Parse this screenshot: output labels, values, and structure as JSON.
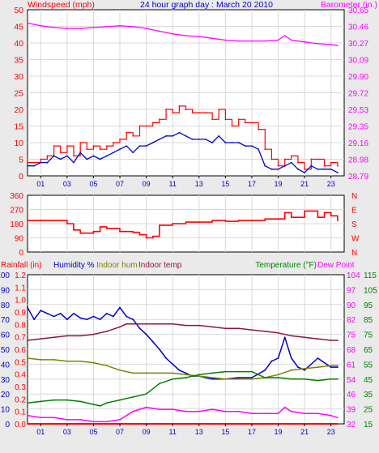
{
  "header": {
    "left_label": "Windspeed (mph)",
    "title": "24 hour graph day : March 20 2010",
    "right_label": "Barometer (in.)"
  },
  "panel3_header": {
    "rainfall": "Rainfall (in)",
    "humidity": "Humidity %",
    "indoor_hum": "Indoor hum",
    "indoor_temp": "Indoor temp",
    "temperature": "Temperature (°F)",
    "dew_point": "Dew Point"
  },
  "colors": {
    "bg": "#eaeaea",
    "plot_bg": "#ffffff",
    "wind": "#ff0000",
    "wind_avg": "#0000cc",
    "barometer": "#ff00ff",
    "humidity": "#0000cc",
    "indoor_hum": "#808000",
    "indoor_temp": "#8b1a3a",
    "temperature": "#008000",
    "dew_point": "#ff00ff",
    "rainfall": "#ff0000"
  },
  "chart_data": [
    {
      "type": "line",
      "title": "24 hour graph day : March 20 2010",
      "xlabel": "",
      "x_ticks": [
        "01",
        "03",
        "05",
        "07",
        "09",
        "11",
        "13",
        "15",
        "17",
        "19",
        "21",
        "23"
      ],
      "xlim": [
        0,
        24
      ],
      "left_axis": {
        "label": "Windspeed (mph)",
        "ticks": [
          0,
          5,
          10,
          15,
          20,
          25,
          30,
          35,
          40,
          45,
          50
        ],
        "ylim": [
          0,
          50
        ]
      },
      "right_axis": {
        "label": "Barometer (in.)",
        "ticks": [
          "28.79",
          "28.98",
          "29.16",
          "29.35",
          "29.53",
          "29.72",
          "29.90",
          "30.09",
          "30.27",
          "30.46",
          "30.65"
        ],
        "ylim": [
          28.79,
          30.65
        ]
      },
      "series": [
        {
          "name": "Windspeed",
          "axis": "left",
          "x": [
            0,
            0.5,
            1,
            1.5,
            2,
            2.5,
            3,
            3.5,
            4,
            4.5,
            5,
            5.5,
            6,
            6.5,
            7,
            7.5,
            8,
            8.5,
            9,
            9.5,
            10,
            10.5,
            11,
            11.5,
            12,
            12.5,
            13,
            13.5,
            14,
            14.5,
            15,
            15.5,
            16,
            16.5,
            17,
            17.5,
            18,
            18.5,
            19,
            19.5,
            20,
            20.5,
            21,
            21.5,
            22,
            22.5,
            23,
            23.5
          ],
          "values": [
            4,
            4,
            5,
            6,
            9,
            7,
            9,
            6,
            10,
            8,
            9,
            8,
            9,
            10,
            11,
            13,
            12,
            15,
            15,
            16,
            17,
            20,
            19,
            21,
            20,
            19,
            19,
            19,
            17,
            20,
            17,
            15,
            17,
            16,
            16,
            14,
            8,
            5,
            3,
            5,
            6,
            4,
            2,
            5,
            5,
            3,
            4,
            3
          ]
        },
        {
          "name": "Wind average",
          "axis": "left",
          "x": [
            0,
            0.5,
            1,
            1.5,
            2,
            2.5,
            3,
            3.5,
            4,
            4.5,
            5,
            5.5,
            6,
            6.5,
            7,
            7.5,
            8,
            8.5,
            9,
            9.5,
            10,
            10.5,
            11,
            11.5,
            12,
            12.5,
            13,
            13.5,
            14,
            14.5,
            15,
            15.5,
            16,
            16.5,
            17,
            17.5,
            18,
            18.5,
            19,
            19.5,
            20,
            20.5,
            21,
            21.5,
            22,
            22.5,
            23,
            23.5
          ],
          "values": [
            3,
            3,
            4,
            4,
            6,
            5,
            6,
            4,
            7,
            5,
            6,
            5,
            6,
            7,
            8,
            9,
            7,
            9,
            9,
            10,
            11,
            12,
            12,
            13,
            12,
            11,
            11,
            11,
            10,
            12,
            10,
            10,
            10,
            9,
            9,
            8,
            3,
            2,
            2,
            3,
            4,
            2,
            1,
            3,
            2,
            2,
            2,
            1
          ]
        },
        {
          "name": "Barometer",
          "axis": "right",
          "x": [
            0,
            1,
            2,
            3,
            4,
            5,
            6,
            7,
            8,
            9,
            10,
            11,
            12,
            13,
            14,
            15,
            16,
            17,
            18,
            19,
            19.5,
            20,
            21,
            22,
            23,
            23.5
          ],
          "values": [
            30.5,
            30.47,
            30.45,
            30.44,
            30.44,
            30.45,
            30.46,
            30.47,
            30.46,
            30.44,
            30.41,
            30.38,
            30.36,
            30.35,
            30.33,
            30.31,
            30.3,
            30.3,
            30.3,
            30.31,
            30.36,
            30.31,
            30.29,
            30.27,
            30.26,
            30.25
          ]
        }
      ]
    },
    {
      "type": "line",
      "title": "",
      "x_ticks": [
        "01",
        "03",
        "05",
        "07",
        "09",
        "11",
        "13",
        "15",
        "17",
        "19",
        "21",
        "23"
      ],
      "xlim": [
        0,
        24
      ],
      "left_axis": {
        "ticks": [
          0,
          90,
          180,
          270,
          360
        ],
        "ylim": [
          0,
          360
        ]
      },
      "right_axis": {
        "ticks": [
          "N",
          "W",
          "S",
          "E",
          "N"
        ]
      },
      "series": [
        {
          "name": "Wind direction",
          "x": [
            0,
            1,
            2,
            3,
            3.5,
            4,
            5,
            5.5,
            6,
            7,
            8,
            8.5,
            9,
            9.5,
            10,
            11,
            12,
            13,
            14,
            15,
            16,
            17,
            18,
            19,
            19.5,
            20,
            21,
            22,
            22.5,
            23,
            23.5
          ],
          "values": [
            200,
            200,
            200,
            180,
            140,
            120,
            130,
            160,
            150,
            130,
            125,
            110,
            90,
            100,
            170,
            180,
            190,
            190,
            200,
            195,
            200,
            200,
            210,
            210,
            250,
            220,
            260,
            220,
            250,
            230,
            200
          ]
        }
      ]
    },
    {
      "type": "line",
      "title": "",
      "x_ticks": [
        "01",
        "03",
        "05",
        "07",
        "09",
        "11",
        "13",
        "15",
        "17",
        "19",
        "21",
        "23"
      ],
      "xlim": [
        0,
        24
      ],
      "axes": {
        "humidity": {
          "label": "Humidity %",
          "ticks": [
            0,
            10,
            20,
            30,
            40,
            50,
            60,
            70,
            80,
            90,
            100
          ],
          "ylim": [
            0,
            100
          ]
        },
        "rainfall": {
          "label": "Rainfall (in)",
          "ticks": [
            "0.0",
            "0.1",
            "0.2",
            "0.3",
            "0.4",
            "0.5",
            "0.6",
            "0.7",
            "0.8",
            "0.9",
            "1.0",
            "1.1",
            "1.2"
          ],
          "ylim": [
            0,
            1.2
          ]
        },
        "temperature": {
          "label": "Temperature (°F)",
          "ticks": [
            "15",
            "25",
            "35",
            "45",
            "55",
            "65",
            "75",
            "85",
            "95",
            "105",
            "115"
          ],
          "ylim": [
            15,
            115
          ]
        },
        "dew_point": {
          "label": "Dew Point",
          "ticks": [
            "32",
            "39",
            "46",
            "54",
            "61",
            "68",
            "75",
            "82",
            "90",
            "97",
            "104"
          ],
          "ylim": [
            32,
            104
          ]
        }
      },
      "series": [
        {
          "name": "Humidity %",
          "axis": "humidity",
          "x": [
            0,
            0.5,
            1,
            1.5,
            2,
            2.5,
            3,
            3.5,
            4,
            4.5,
            5,
            5.5,
            6,
            6.5,
            7,
            7.5,
            8,
            8.5,
            9,
            9.5,
            10,
            10.5,
            11,
            11.5,
            12,
            12.5,
            13,
            14,
            15,
            16,
            17,
            18,
            18.5,
            19,
            19.5,
            20,
            20.5,
            21,
            22,
            23,
            23.5
          ],
          "values": [
            78,
            70,
            76,
            74,
            72,
            74,
            70,
            74,
            71,
            70,
            72,
            70,
            74,
            72,
            78,
            72,
            70,
            64,
            60,
            55,
            50,
            44,
            40,
            36,
            34,
            32,
            32,
            30,
            30,
            31,
            31,
            36,
            42,
            44,
            58,
            44,
            38,
            36,
            44,
            38,
            38
          ]
        },
        {
          "name": "Indoor hum",
          "axis": "humidity",
          "x": [
            0,
            1,
            2,
            3,
            4,
            5,
            6,
            7,
            8,
            9,
            10,
            11,
            12,
            13,
            14,
            15,
            16,
            17,
            18,
            19,
            20,
            21,
            22,
            23,
            23.5
          ],
          "values": [
            44,
            43,
            43,
            42,
            42,
            41,
            39,
            36,
            34,
            34,
            34,
            34,
            33,
            32,
            31,
            30,
            30,
            30,
            31,
            33,
            36,
            37,
            38,
            39,
            39
          ]
        },
        {
          "name": "Indoor temp",
          "axis": "temperature",
          "x": [
            0,
            1,
            2,
            3,
            4,
            5,
            6,
            7,
            7.5,
            8,
            9,
            10,
            11,
            12,
            13,
            14,
            15,
            16,
            17,
            18,
            19,
            20,
            21,
            22,
            23,
            23.5
          ],
          "values": [
            71,
            72,
            73,
            74,
            74,
            75,
            77,
            80,
            82,
            82,
            82,
            82,
            82,
            81,
            81,
            80,
            79,
            79,
            78,
            77,
            76,
            74,
            73,
            72,
            71,
            71
          ]
        },
        {
          "name": "Temperature (°F)",
          "axis": "temperature",
          "x": [
            0,
            1,
            2,
            3,
            4,
            5,
            5.5,
            6,
            7,
            7.5,
            8,
            9,
            10,
            11,
            12,
            13,
            14,
            15,
            16,
            17,
            17.5,
            18,
            19,
            20,
            21,
            22,
            23,
            23.5
          ],
          "values": [
            29,
            30,
            31,
            31,
            30,
            28,
            27,
            29,
            31,
            32,
            33,
            35,
            42,
            45,
            46,
            48,
            49,
            50,
            50,
            50,
            48,
            46,
            46,
            45,
            45,
            44,
            45,
            45
          ]
        },
        {
          "name": "Dew Point",
          "axis": "dew_point",
          "x": [
            0,
            1,
            2,
            3,
            4,
            5,
            6,
            7,
            7.5,
            8,
            8.5,
            9,
            10,
            11,
            12,
            13,
            14,
            15,
            16,
            17,
            18,
            19,
            19.5,
            20,
            21,
            22,
            23,
            23.5
          ],
          "values": [
            36,
            35,
            35,
            34,
            34,
            33,
            33,
            34,
            36,
            38,
            39,
            40,
            39,
            39,
            38,
            38,
            39,
            38,
            38,
            37,
            37,
            37,
            40,
            38,
            37,
            37,
            36,
            35
          ]
        },
        {
          "name": "Rainfall (in)",
          "axis": "rainfall",
          "x": [
            0,
            23.5
          ],
          "values": [
            0,
            0
          ]
        }
      ]
    }
  ]
}
